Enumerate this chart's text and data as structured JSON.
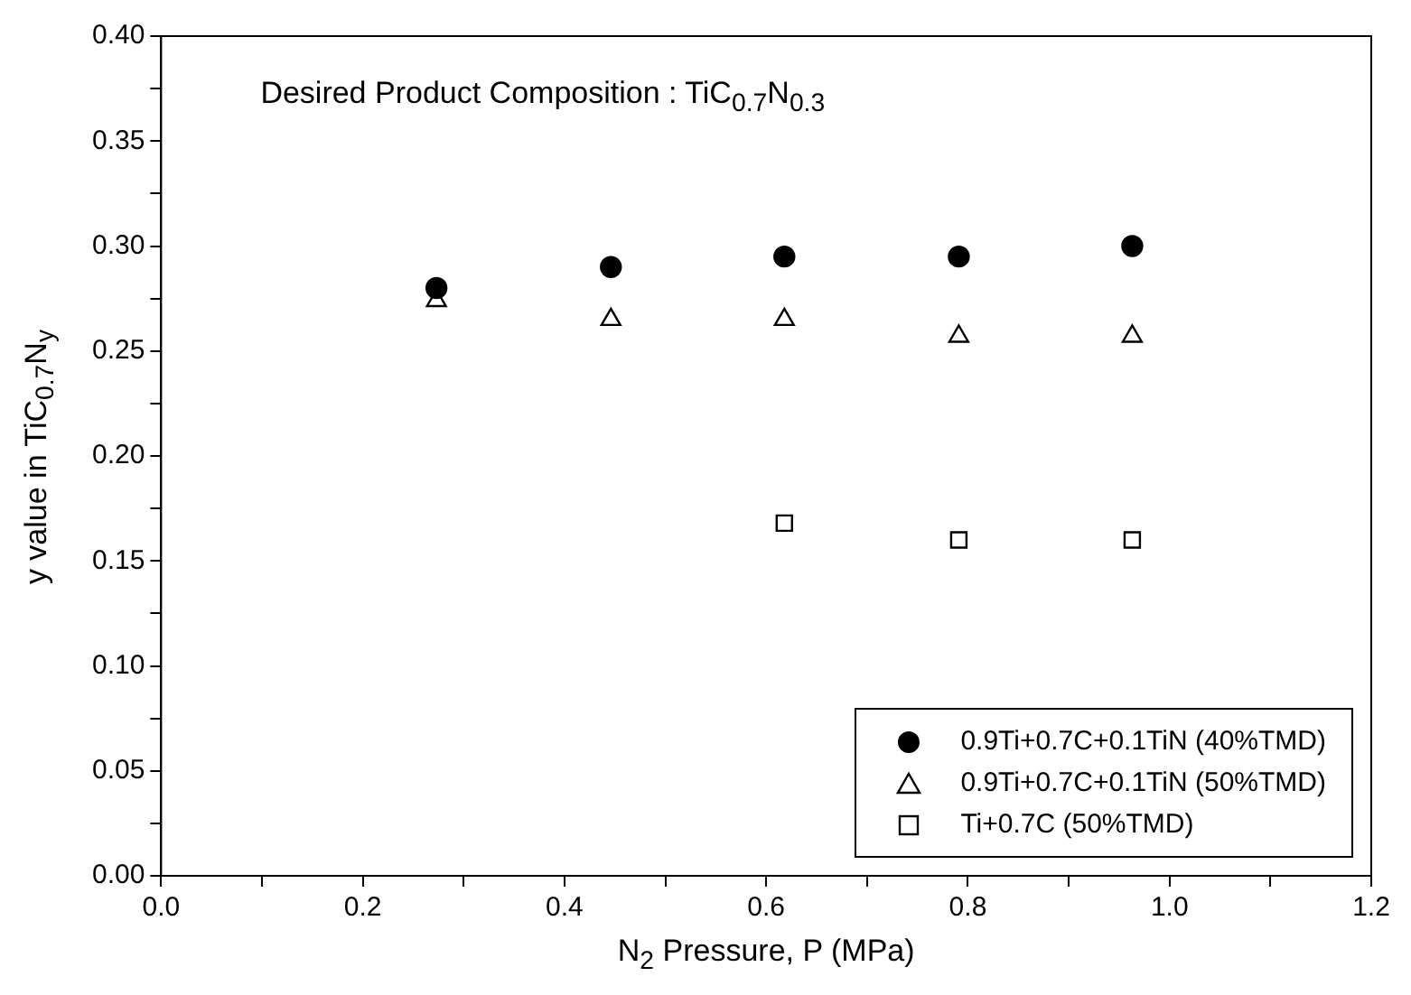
{
  "chart_data": {
    "type": "scatter",
    "xlabel": "N$_{2}$ Pressure, P (MPa)",
    "ylabel": "y value in TiC$_{0.7}$N$_{y}$",
    "annotations": [
      "Desired Product Composition : TiC$_{0.7}$N$_{0.3}$"
    ],
    "series": [
      {
        "name": "0.9Ti+0.7C+0.1TiN (40%TMD)",
        "color": "#000000",
        "marker": "circle",
        "x": [
          0.273,
          0.446,
          0.618,
          0.791,
          0.963
        ],
        "values": [
          0.28,
          0.29,
          0.295,
          0.295,
          0.3
        ]
      },
      {
        "name": "0.9Ti+0.7C+0.1TiN (50%TMD)",
        "color": "#000000",
        "marker": "triangle",
        "x": [
          0.273,
          0.446,
          0.618,
          0.791,
          0.963
        ],
        "values": [
          0.274,
          0.265,
          0.265,
          0.257,
          0.257
        ]
      },
      {
        "name": "Ti+0.7C (50%TMD)",
        "color": "#000000",
        "marker": "square",
        "x": [
          0.618,
          0.791,
          0.963
        ],
        "values": [
          0.168,
          0.16,
          0.16
        ]
      }
    ],
    "xlim": [
      0,
      1.2
    ],
    "xticks": [
      {
        "value": 0,
        "label": "0.0"
      },
      {
        "value": 0.1,
        "label": null
      },
      {
        "value": 0.2,
        "label": "0.2"
      },
      {
        "value": 0.3,
        "label": null
      },
      {
        "value": 0.4,
        "label": "0.4"
      },
      {
        "value": 0.5,
        "label": null
      },
      {
        "value": 0.6,
        "label": "0.6"
      },
      {
        "value": 0.7,
        "label": null
      },
      {
        "value": 0.8,
        "label": "0.8"
      },
      {
        "value": 0.9,
        "label": null
      },
      {
        "value": 1.0,
        "label": "1.0"
      },
      {
        "value": 1.1,
        "label": null
      },
      {
        "value": 1.2,
        "label": "1.2"
      }
    ],
    "ylim": [
      0,
      0.4
    ],
    "yticks": [
      {
        "value": 0,
        "label": "0.00"
      },
      {
        "value": 0.025,
        "label": null
      },
      {
        "value": 0.05,
        "label": "0.05"
      },
      {
        "value": 0.075,
        "label": null
      },
      {
        "value": 0.1,
        "label": "0.10"
      },
      {
        "value": 0.125,
        "label": null
      },
      {
        "value": 0.15,
        "label": "0.15"
      },
      {
        "value": 0.175,
        "label": null
      },
      {
        "value": 0.2,
        "label": "0.20"
      },
      {
        "value": 0.225,
        "label": null
      },
      {
        "value": 0.25,
        "label": "0.25"
      },
      {
        "value": 0.275,
        "label": null
      },
      {
        "value": 0.3,
        "label": "0.30"
      },
      {
        "value": 0.325,
        "label": null
      },
      {
        "value": 0.35,
        "label": "0.35"
      },
      {
        "value": 0.375,
        "label": null
      },
      {
        "value": 0.4,
        "label": "0.40"
      }
    ],
    "grid": false,
    "legend": "bottom right"
  }
}
